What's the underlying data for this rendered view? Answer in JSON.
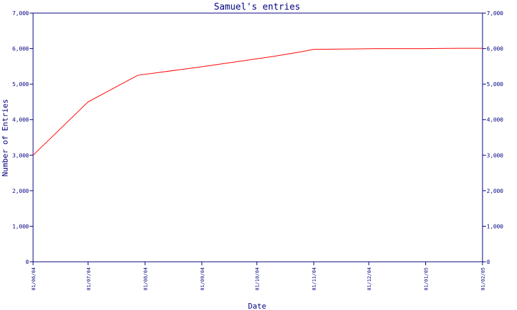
{
  "chart_data": {
    "type": "line",
    "title": "Samuel's entries",
    "xlabel": "Date",
    "ylabel": "Number of Entries",
    "xlim": [
      "2004-06-01",
      "2005-02-01"
    ],
    "ylim": [
      0,
      7000
    ],
    "y_ticks": [
      0,
      1000,
      2000,
      3000,
      4000,
      5000,
      6000,
      7000
    ],
    "y_tick_labels": [
      "0",
      "1,000",
      "2,000",
      "3,000",
      "4,000",
      "5,000",
      "6,000",
      "7,000"
    ],
    "x_ticks": [
      "2004-06-01",
      "2004-07-01",
      "2004-08-01",
      "2004-09-01",
      "2004-10-01",
      "2004-11-01",
      "2004-12-01",
      "2005-01-01",
      "2005-02-01"
    ],
    "x_tick_labels": [
      "01/06/04",
      "01/07/04",
      "01/08/04",
      "01/09/04",
      "01/10/04",
      "01/11/04",
      "01/12/04",
      "01/01/05",
      "01/02/05"
    ],
    "grid": false,
    "right_axis": true,
    "series": [
      {
        "color": "#ff0000",
        "x": [
          "2004-06-01",
          "2004-07-01",
          "2004-07-28",
          "2004-09-01",
          "2004-09-17",
          "2004-10-10",
          "2004-10-25",
          "2004-11-01",
          "2004-11-20",
          "2004-12-05",
          "2004-12-31",
          "2005-01-20",
          "2005-02-01"
        ],
        "y": [
          3000,
          4500,
          5250,
          5490,
          5610,
          5780,
          5910,
          5980,
          5990,
          6000,
          6000,
          6010,
          6010
        ]
      }
    ]
  }
}
